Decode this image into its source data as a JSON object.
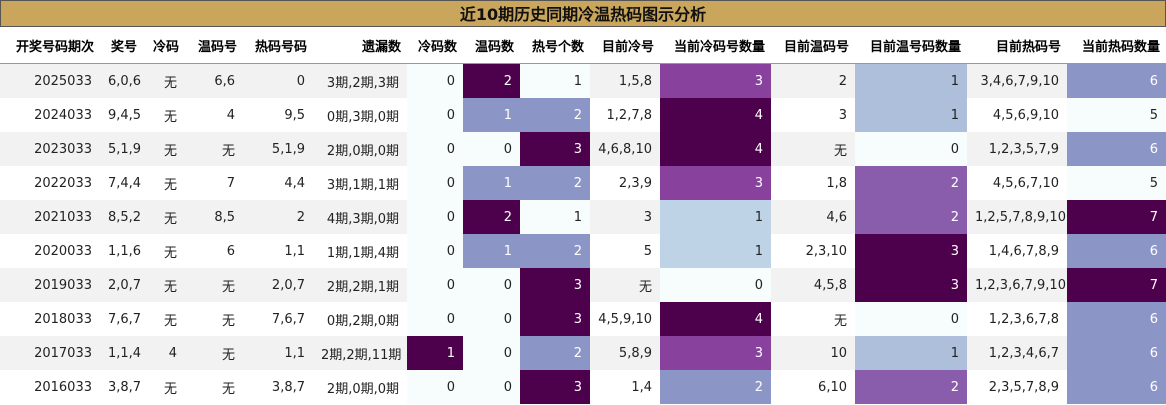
{
  "table": {
    "title": "近10期历史同期冷温热码图示分析",
    "columns": [
      "开奖号码期次",
      "奖号",
      "冷码",
      "温码号",
      "热码号码",
      "遗漏数",
      "冷码数",
      "温码数",
      "热号个数",
      "目前冷号",
      "当前冷码号数量",
      "目前温码号",
      "目前温号码数量",
      "目前热码号",
      "当前热码数量"
    ],
    "heat_columns": [
      6,
      7,
      8,
      10,
      12,
      14
    ],
    "heat_colors": [
      "#f7fcfd",
      "#bfd3e6",
      "#8c96c6",
      "#88419d",
      "#4d004b"
    ],
    "rows": [
      [
        "2025033",
        "6,0,6",
        "无",
        "6,6",
        "0",
        "3期,2期,3期",
        0,
        2,
        1,
        "1,5,8",
        3,
        "2",
        1,
        "3,4,6,7,9,10",
        6
      ],
      [
        "2024033",
        "9,4,5",
        "无",
        "4",
        "9,5",
        "0期,3期,0期",
        0,
        1,
        2,
        "1,2,7,8",
        4,
        "3",
        1,
        "4,5,6,9,10",
        5
      ],
      [
        "2023033",
        "5,1,9",
        "无",
        "无",
        "5,1,9",
        "2期,0期,0期",
        0,
        0,
        3,
        "4,6,8,10",
        4,
        "无",
        0,
        "1,2,3,5,7,9",
        6
      ],
      [
        "2022033",
        "7,4,4",
        "无",
        "7",
        "4,4",
        "3期,1期,1期",
        0,
        1,
        2,
        "2,3,9",
        3,
        "1,8",
        2,
        "4,5,6,7,10",
        5
      ],
      [
        "2021033",
        "8,5,2",
        "无",
        "8,5",
        "2",
        "4期,3期,0期",
        0,
        2,
        1,
        "3",
        1,
        "4,6",
        2,
        "1,2,5,7,8,9,10",
        7
      ],
      [
        "2020033",
        "1,1,6",
        "无",
        "6",
        "1,1",
        "1期,1期,4期",
        0,
        1,
        2,
        "5",
        1,
        "2,3,10",
        3,
        "1,4,6,7,8,9",
        6
      ],
      [
        "2019033",
        "2,0,7",
        "无",
        "无",
        "2,0,7",
        "2期,2期,1期",
        0,
        0,
        3,
        "无",
        0,
        "4,5,8",
        3,
        "1,2,3,6,7,9,10",
        7
      ],
      [
        "2018033",
        "7,6,7",
        "无",
        "无",
        "7,6,7",
        "0期,2期,0期",
        0,
        0,
        3,
        "4,5,9,10",
        4,
        "无",
        0,
        "1,2,3,6,7,8",
        6
      ],
      [
        "2017033",
        "1,1,4",
        "4",
        "无",
        "1,1",
        "2期,2期,11期",
        1,
        0,
        2,
        "5,8,9",
        3,
        "10",
        1,
        "1,2,3,4,6,7",
        6
      ],
      [
        "2016033",
        "3,8,7",
        "无",
        "无",
        "3,8,7",
        "2期,0期,0期",
        0,
        0,
        3,
        "1,4",
        2,
        "6,10",
        2,
        "2,3,5,7,8,9",
        6
      ]
    ]
  }
}
